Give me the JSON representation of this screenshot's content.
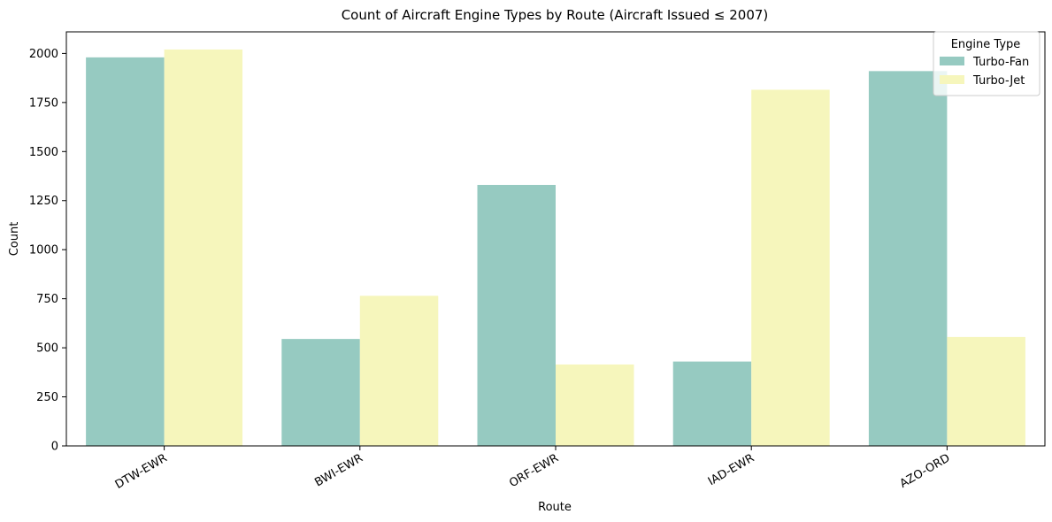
{
  "chart_data": {
    "type": "bar",
    "title": "Count of Aircraft Engine Types by Route (Aircraft Issued ≤ 2007)",
    "xlabel": "Route",
    "ylabel": "Count",
    "categories": [
      "DTW-EWR",
      "BWI-EWR",
      "ORF-EWR",
      "IAD-EWR",
      "AZO-ORD"
    ],
    "series": [
      {
        "name": "Turbo-Fan",
        "color": "#96CAC1",
        "values": [
          1980,
          545,
          1330,
          430,
          1910
        ]
      },
      {
        "name": "Turbo-Jet",
        "color": "#F6F6BC",
        "values": [
          2020,
          765,
          415,
          1815,
          555
        ]
      }
    ],
    "ylim": [
      0,
      2110
    ],
    "yticks": [
      0,
      250,
      500,
      750,
      1000,
      1250,
      1500,
      1750,
      2000
    ],
    "legend": {
      "title": "Engine Type",
      "placement": "top-right"
    },
    "grid": false
  }
}
